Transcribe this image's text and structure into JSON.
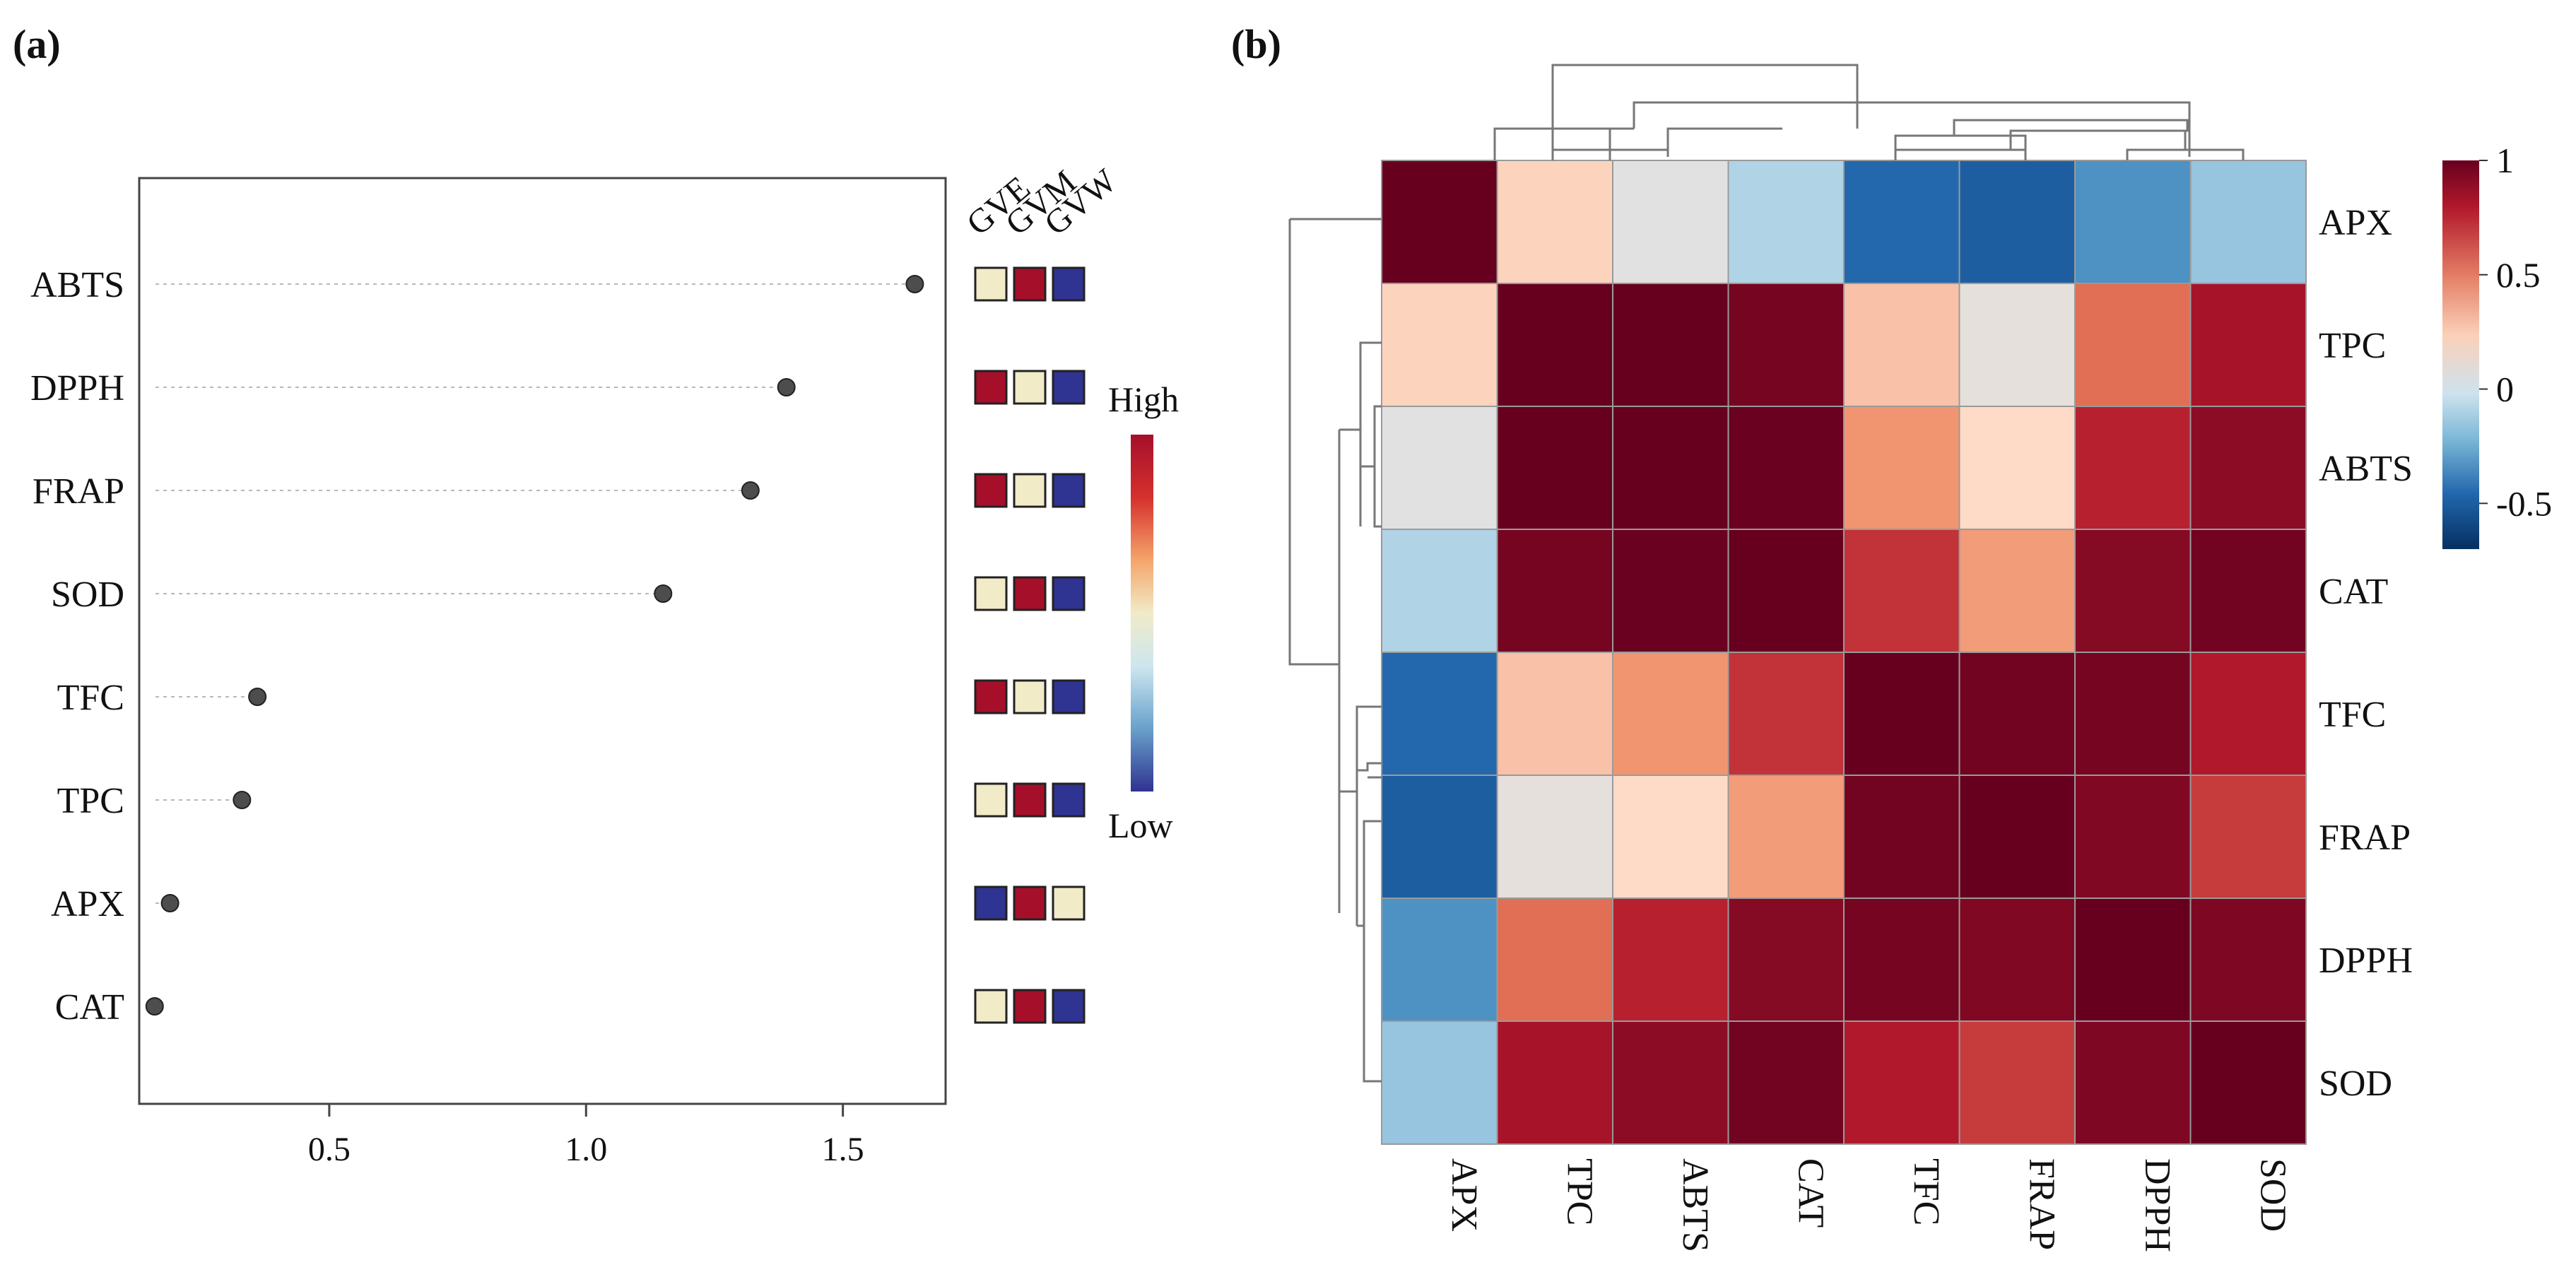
{
  "colors": {
    "high": "#a50f2a",
    "mid": "#f1ebc8",
    "low": "#2f3391",
    "point": "#4d4d4d",
    "grid": "#b8b8b8",
    "cell_border": "#9a9a9a"
  },
  "chart_data": [
    {
      "panel_label": "(a)",
      "type": "scatter",
      "title": "",
      "xlabel": "",
      "ylabel": "",
      "xlim": [
        0.13,
        1.7
      ],
      "x_ticks": [
        "0.5",
        "1.0",
        "1.5"
      ],
      "categories": [
        "ABTS",
        "DPPH",
        "FRAP",
        "SOD",
        "TFC",
        "TPC",
        "APX",
        "CAT"
      ],
      "values": [
        1.64,
        1.39,
        1.32,
        1.15,
        0.36,
        0.33,
        0.19,
        0.16
      ],
      "group_labels": [
        "GVE",
        "GVM",
        "GVW"
      ],
      "group_levels": [
        [
          "mid",
          "high",
          "low"
        ],
        [
          "high",
          "mid",
          "low"
        ],
        [
          "high",
          "mid",
          "low"
        ],
        [
          "mid",
          "high",
          "low"
        ],
        [
          "high",
          "mid",
          "low"
        ],
        [
          "mid",
          "high",
          "low"
        ],
        [
          "low",
          "high",
          "mid"
        ],
        [
          "mid",
          "high",
          "low"
        ]
      ],
      "legend": {
        "high_label": "High",
        "low_label": "Low"
      }
    },
    {
      "panel_label": "(b)",
      "type": "heatmap",
      "title": "",
      "rows": [
        "APX",
        "TPC",
        "ABTS",
        "CAT",
        "TFC",
        "FRAP",
        "DPPH",
        "SOD"
      ],
      "cols": [
        "APX",
        "TPC",
        "ABTS",
        "CAT",
        "TFC",
        "FRAP",
        "DPPH",
        "SOD"
      ],
      "matrix": [
        [
          1.0,
          0.35,
          0.12,
          -0.1,
          -0.66,
          -0.72,
          -0.45,
          -0.18
        ],
        [
          0.35,
          1.0,
          1.0,
          0.96,
          0.4,
          0.16,
          0.61,
          0.83
        ],
        [
          0.12,
          1.0,
          1.0,
          0.99,
          0.52,
          0.33,
          0.78,
          0.9
        ],
        [
          -0.1,
          0.96,
          0.99,
          1.0,
          0.74,
          0.5,
          0.92,
          0.97
        ],
        [
          -0.66,
          0.4,
          0.52,
          0.74,
          1.0,
          0.97,
          0.96,
          0.8
        ],
        [
          -0.72,
          0.16,
          0.33,
          0.5,
          0.97,
          1.0,
          0.93,
          0.72
        ],
        [
          -0.45,
          0.61,
          0.78,
          0.92,
          0.96,
          0.93,
          1.0,
          0.94
        ],
        [
          -0.18,
          0.83,
          0.9,
          0.97,
          0.8,
          0.72,
          0.94,
          1.0
        ]
      ],
      "colorbar": {
        "range": [
          -0.7,
          1.0
        ],
        "ticks": [
          "1",
          "0.5",
          "0",
          "-0.5"
        ],
        "tick_values": [
          1,
          0.5,
          0,
          -0.5
        ]
      }
    }
  ]
}
